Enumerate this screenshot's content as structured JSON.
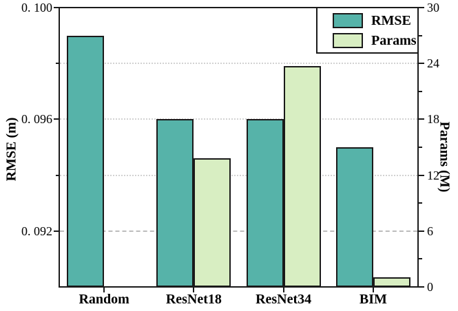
{
  "chart_data": {
    "type": "bar",
    "title": "",
    "categories": [
      "Random",
      "ResNet18",
      "ResNet34",
      "BIM"
    ],
    "series": [
      {
        "name": "RMSE",
        "axis": "left",
        "color": "#56b3a9",
        "values": [
          0.099,
          0.096,
          0.096,
          0.095
        ]
      },
      {
        "name": "Params",
        "axis": "right",
        "color": "#d8eec2",
        "values": [
          null,
          13.8,
          23.7,
          1.0
        ]
      }
    ],
    "left_axis": {
      "label": "RMSE (m)",
      "min": 0.09,
      "max": 0.1,
      "major_ticks": [
        {
          "value": 0.1,
          "label": "0. 100"
        },
        {
          "value": 0.096,
          "label": "0. 096"
        },
        {
          "value": 0.092,
          "label": "0. 092"
        }
      ],
      "minor_ticks": [
        0.098,
        0.094
      ]
    },
    "right_axis": {
      "label": "Params (M)",
      "min": 0,
      "max": 30,
      "major_ticks": [
        {
          "value": 30,
          "label": "30"
        },
        {
          "value": 24,
          "label": "24"
        },
        {
          "value": 18,
          "label": "18"
        },
        {
          "value": 12,
          "label": "12"
        },
        {
          "value": 6,
          "label": "6"
        },
        {
          "value": 0,
          "label": "0"
        }
      ],
      "minor_ticks": [
        27,
        21,
        15,
        9,
        3
      ]
    },
    "gridlines": [
      {
        "left_value": 0.098,
        "right_value": 24,
        "style": "dotted"
      },
      {
        "left_value": 0.096,
        "right_value": 18,
        "style": "dotted"
      },
      {
        "left_value": 0.094,
        "right_value": 12,
        "style": "dotted"
      },
      {
        "left_value": 0.092,
        "right_value": 6,
        "style": "dashed"
      }
    ],
    "legend": {
      "position": "upper-right",
      "entries": [
        {
          "label": "RMSE",
          "color": "#56b3a9"
        },
        {
          "label": "Params",
          "color": "#d8eec2"
        }
      ]
    },
    "bar_edge_color": "#1a1a1a",
    "grid_on": true
  }
}
